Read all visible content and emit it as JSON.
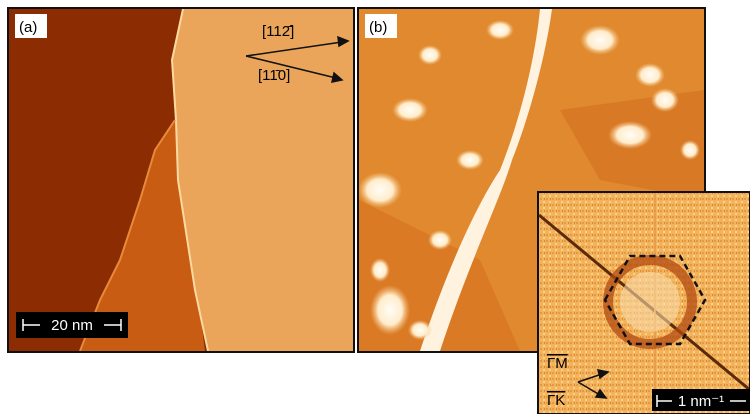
{
  "panel_a": {
    "label": "(a)",
    "direction_1": "[112̄]",
    "direction_2": "[11̄0]",
    "scale_bar": "20 nm"
  },
  "panel_b": {
    "label": "(b)"
  },
  "inset": {
    "direction_1": "ΓM",
    "direction_2": "ΓK",
    "scale_bar": "1 nm⁻¹"
  }
}
